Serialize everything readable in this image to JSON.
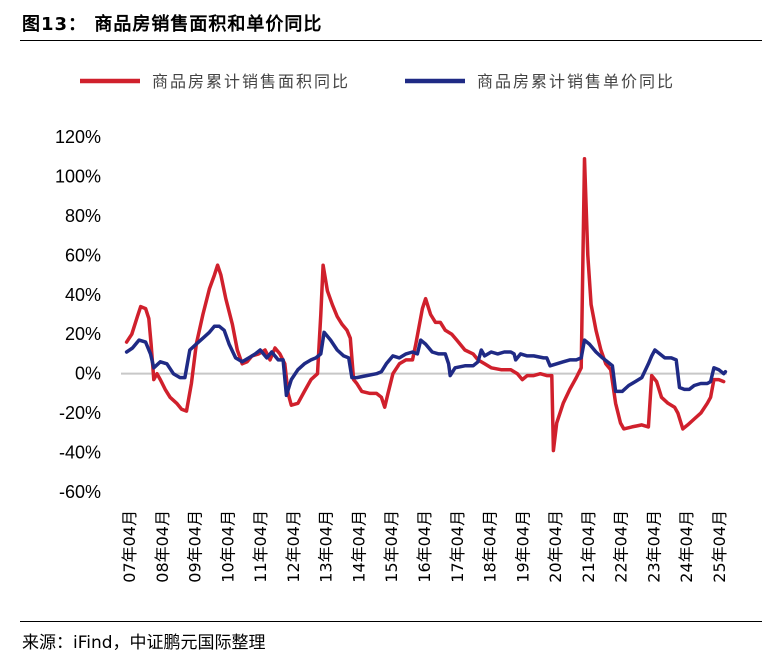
{
  "header": {
    "title": "图13：  商品房销售面积和单价同比"
  },
  "footer": {
    "source": "来源：iFind，中证鹏元国际整理"
  },
  "chart_data": {
    "type": "line",
    "title": "图13：  商品房销售面积和单价同比",
    "y_ticks": [
      "120%",
      "100%",
      "80%",
      "60%",
      "40%",
      "20%",
      "0%",
      "-20%",
      "-40%",
      "-60%"
    ],
    "ylim": [
      -60,
      120
    ],
    "x_ticks": [
      "07年04月",
      "08年04月",
      "09年04月",
      "10年04月",
      "11年04月",
      "12年04月",
      "13年04月",
      "14年04月",
      "15年04月",
      "16年04月",
      "17年04月",
      "18年04月",
      "19年04月",
      "20年04月",
      "21年04月",
      "22年04月",
      "23年04月",
      "24年04月",
      "25年04月"
    ],
    "xlim": [
      2007.0,
      2025.5
    ],
    "series": [
      {
        "name": "商品房累计销售面积同比",
        "color": "#d0202c",
        "points": [
          [
            2007.17,
            16
          ],
          [
            2007.33,
            20
          ],
          [
            2007.5,
            29
          ],
          [
            2007.6,
            34
          ],
          [
            2007.75,
            33
          ],
          [
            2007.85,
            28
          ],
          [
            2007.92,
            15
          ],
          [
            2008.0,
            -3
          ],
          [
            2008.1,
            0
          ],
          [
            2008.2,
            -3
          ],
          [
            2008.35,
            -8
          ],
          [
            2008.5,
            -12
          ],
          [
            2008.7,
            -15
          ],
          [
            2008.85,
            -18
          ],
          [
            2009.0,
            -19
          ],
          [
            2009.15,
            -5
          ],
          [
            2009.3,
            15
          ],
          [
            2009.5,
            30
          ],
          [
            2009.7,
            43
          ],
          [
            2009.85,
            50
          ],
          [
            2009.95,
            55
          ],
          [
            2010.05,
            50
          ],
          [
            2010.2,
            38
          ],
          [
            2010.4,
            25
          ],
          [
            2010.55,
            12
          ],
          [
            2010.7,
            5
          ],
          [
            2010.85,
            6
          ],
          [
            2011.0,
            9
          ],
          [
            2011.2,
            10
          ],
          [
            2011.4,
            12
          ],
          [
            2011.55,
            7
          ],
          [
            2011.7,
            13
          ],
          [
            2011.85,
            10
          ],
          [
            2012.0,
            5
          ],
          [
            2012.1,
            -10
          ],
          [
            2012.2,
            -16
          ],
          [
            2012.4,
            -15
          ],
          [
            2012.6,
            -9
          ],
          [
            2012.8,
            -3
          ],
          [
            2013.0,
            0
          ],
          [
            2013.1,
            30
          ],
          [
            2013.17,
            55
          ],
          [
            2013.3,
            42
          ],
          [
            2013.45,
            35
          ],
          [
            2013.6,
            29
          ],
          [
            2013.75,
            25
          ],
          [
            2013.9,
            22
          ],
          [
            2014.0,
            18
          ],
          [
            2014.1,
            -3
          ],
          [
            2014.2,
            -5
          ],
          [
            2014.35,
            -9
          ],
          [
            2014.6,
            -10
          ],
          [
            2014.8,
            -10
          ],
          [
            2014.95,
            -12
          ],
          [
            2015.05,
            -17
          ],
          [
            2015.15,
            -10
          ],
          [
            2015.3,
            0
          ],
          [
            2015.5,
            5
          ],
          [
            2015.7,
            7
          ],
          [
            2015.9,
            7
          ],
          [
            2016.0,
            15
          ],
          [
            2016.2,
            33
          ],
          [
            2016.3,
            38
          ],
          [
            2016.45,
            30
          ],
          [
            2016.6,
            26
          ],
          [
            2016.75,
            26
          ],
          [
            2016.9,
            22
          ],
          [
            2017.1,
            20
          ],
          [
            2017.25,
            17
          ],
          [
            2017.5,
            12
          ],
          [
            2017.75,
            10
          ],
          [
            2017.9,
            7
          ],
          [
            2018.1,
            5
          ],
          [
            2018.3,
            3
          ],
          [
            2018.6,
            2
          ],
          [
            2018.9,
            2
          ],
          [
            2019.1,
            0
          ],
          [
            2019.25,
            -3
          ],
          [
            2019.4,
            -1
          ],
          [
            2019.6,
            -1
          ],
          [
            2019.8,
            0
          ],
          [
            2020.0,
            -1
          ],
          [
            2020.15,
            -1
          ],
          [
            2020.2,
            -39
          ],
          [
            2020.3,
            -25
          ],
          [
            2020.5,
            -15
          ],
          [
            2020.7,
            -8
          ],
          [
            2020.9,
            -2
          ],
          [
            2021.05,
            3
          ],
          [
            2021.15,
            109
          ],
          [
            2021.25,
            60
          ],
          [
            2021.35,
            35
          ],
          [
            2021.5,
            22
          ],
          [
            2021.65,
            12
          ],
          [
            2021.8,
            5
          ],
          [
            2021.95,
            2
          ],
          [
            2022.1,
            -15
          ],
          [
            2022.25,
            -25
          ],
          [
            2022.35,
            -28
          ],
          [
            2022.6,
            -27
          ],
          [
            2022.9,
            -26
          ],
          [
            2023.1,
            -27
          ],
          [
            2023.2,
            -1
          ],
          [
            2023.35,
            -4
          ],
          [
            2023.5,
            -12
          ],
          [
            2023.7,
            -15
          ],
          [
            2023.9,
            -17
          ],
          [
            2024.0,
            -20
          ],
          [
            2024.15,
            -28
          ],
          [
            2024.3,
            -26
          ],
          [
            2024.5,
            -23
          ],
          [
            2024.7,
            -20
          ],
          [
            2024.9,
            -15
          ],
          [
            2025.0,
            -12
          ],
          [
            2025.1,
            -3
          ],
          [
            2025.25,
            -3
          ],
          [
            2025.4,
            -4
          ]
        ]
      },
      {
        "name": "商品房累计销售单价同比",
        "color": "#1f2a85",
        "points": [
          [
            2007.17,
            11
          ],
          [
            2007.35,
            13
          ],
          [
            2007.55,
            17
          ],
          [
            2007.75,
            16
          ],
          [
            2007.9,
            10
          ],
          [
            2008.0,
            3
          ],
          [
            2008.2,
            6
          ],
          [
            2008.4,
            5
          ],
          [
            2008.6,
            0
          ],
          [
            2008.8,
            -2
          ],
          [
            2008.95,
            -2
          ],
          [
            2009.1,
            12
          ],
          [
            2009.3,
            15
          ],
          [
            2009.5,
            18
          ],
          [
            2009.7,
            21
          ],
          [
            2009.85,
            24
          ],
          [
            2010.0,
            24
          ],
          [
            2010.15,
            22
          ],
          [
            2010.3,
            15
          ],
          [
            2010.5,
            8
          ],
          [
            2010.7,
            6
          ],
          [
            2010.9,
            8
          ],
          [
            2011.1,
            10
          ],
          [
            2011.25,
            12
          ],
          [
            2011.45,
            8
          ],
          [
            2011.6,
            11
          ],
          [
            2011.8,
            7
          ],
          [
            2011.95,
            7
          ],
          [
            2012.05,
            -11
          ],
          [
            2012.2,
            -3
          ],
          [
            2012.4,
            2
          ],
          [
            2012.6,
            5
          ],
          [
            2012.8,
            7
          ],
          [
            2012.95,
            8
          ],
          [
            2013.1,
            10
          ],
          [
            2013.2,
            21
          ],
          [
            2013.4,
            17
          ],
          [
            2013.6,
            12
          ],
          [
            2013.8,
            9
          ],
          [
            2013.95,
            8
          ],
          [
            2014.05,
            -2
          ],
          [
            2014.2,
            -2
          ],
          [
            2014.5,
            -1
          ],
          [
            2014.8,
            0
          ],
          [
            2014.95,
            1
          ],
          [
            2015.1,
            5
          ],
          [
            2015.3,
            9
          ],
          [
            2015.5,
            8
          ],
          [
            2015.7,
            10
          ],
          [
            2015.9,
            11
          ],
          [
            2016.05,
            10
          ],
          [
            2016.15,
            17
          ],
          [
            2016.3,
            15
          ],
          [
            2016.5,
            11
          ],
          [
            2016.7,
            10
          ],
          [
            2016.9,
            10
          ],
          [
            2017.0,
            5
          ],
          [
            2017.05,
            -1
          ],
          [
            2017.2,
            3
          ],
          [
            2017.5,
            4
          ],
          [
            2017.75,
            4
          ],
          [
            2017.9,
            6
          ],
          [
            2018.0,
            12
          ],
          [
            2018.1,
            9
          ],
          [
            2018.3,
            11
          ],
          [
            2018.5,
            10
          ],
          [
            2018.7,
            11
          ],
          [
            2018.9,
            11
          ],
          [
            2019.0,
            10
          ],
          [
            2019.05,
            7
          ],
          [
            2019.2,
            10
          ],
          [
            2019.4,
            9
          ],
          [
            2019.6,
            9
          ],
          [
            2019.9,
            8
          ],
          [
            2020.0,
            8
          ],
          [
            2020.1,
            4
          ],
          [
            2020.3,
            5
          ],
          [
            2020.5,
            6
          ],
          [
            2020.7,
            7
          ],
          [
            2020.9,
            7
          ],
          [
            2021.05,
            8
          ],
          [
            2021.15,
            17
          ],
          [
            2021.3,
            15
          ],
          [
            2021.5,
            11
          ],
          [
            2021.7,
            8
          ],
          [
            2021.85,
            6
          ],
          [
            2022.0,
            4
          ],
          [
            2022.1,
            -9
          ],
          [
            2022.3,
            -9
          ],
          [
            2022.5,
            -6
          ],
          [
            2022.7,
            -4
          ],
          [
            2022.9,
            -2
          ],
          [
            2023.1,
            5
          ],
          [
            2023.2,
            9
          ],
          [
            2023.3,
            12
          ],
          [
            2023.45,
            10
          ],
          [
            2023.6,
            8
          ],
          [
            2023.8,
            8
          ],
          [
            2023.95,
            7
          ],
          [
            2024.05,
            -7
          ],
          [
            2024.2,
            -8
          ],
          [
            2024.35,
            -8
          ],
          [
            2024.5,
            -6
          ],
          [
            2024.7,
            -5
          ],
          [
            2024.9,
            -5
          ],
          [
            2025.0,
            -4
          ],
          [
            2025.1,
            3
          ],
          [
            2025.25,
            2
          ],
          [
            2025.4,
            0
          ],
          [
            2025.45,
            1
          ]
        ]
      }
    ]
  }
}
